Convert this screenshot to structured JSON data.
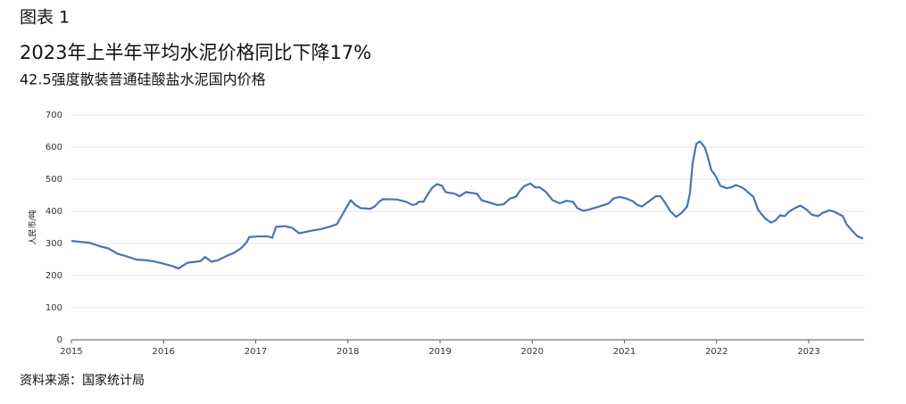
{
  "chart_data": {
    "type": "line",
    "label": "图表 1",
    "title": "2023年上半年平均水泥价格同比下降17%",
    "subtitle": "42.5强度散装普通硅酸盐水泥国内价格",
    "source": "资料来源：国家统计局",
    "y_label": "人民币/吨",
    "grid": true,
    "xlim": [
      2015,
      2023.6
    ],
    "xticks": [
      2015,
      2016,
      2017,
      2018,
      2019,
      2020,
      2021,
      2022,
      2023
    ],
    "ylim": [
      0,
      700
    ],
    "yticks": [
      0,
      100,
      200,
      300,
      400,
      500,
      600,
      700
    ],
    "x": [
      2015.0,
      2015.1,
      2015.2,
      2015.3,
      2015.4,
      2015.5,
      2015.6,
      2015.7,
      2015.8,
      2015.9,
      2016.0,
      2016.1,
      2016.16,
      2016.26,
      2016.4,
      2016.45,
      2016.52,
      2016.59,
      2016.69,
      2016.76,
      2016.84,
      2016.9,
      2016.93,
      2017.03,
      2017.13,
      2017.18,
      2017.22,
      2017.32,
      2017.4,
      2017.47,
      2017.51,
      2017.61,
      2017.71,
      2017.8,
      2017.88,
      2017.95,
      2018.0,
      2018.03,
      2018.08,
      2018.14,
      2018.24,
      2018.29,
      2018.34,
      2018.38,
      2018.53,
      2018.63,
      2018.7,
      2018.74,
      2018.77,
      2018.82,
      2018.87,
      2018.92,
      2018.97,
      2019.02,
      2019.06,
      2019.16,
      2019.21,
      2019.28,
      2019.4,
      2019.45,
      2019.53,
      2019.62,
      2019.69,
      2019.76,
      2019.82,
      2019.87,
      2019.91,
      2019.98,
      2020.03,
      2020.08,
      2020.15,
      2020.22,
      2020.3,
      2020.37,
      2020.44,
      2020.49,
      2020.55,
      2020.61,
      2020.69,
      2020.78,
      2020.83,
      2020.88,
      2020.95,
      2021.02,
      2021.09,
      2021.14,
      2021.19,
      2021.26,
      2021.34,
      2021.39,
      2021.43,
      2021.5,
      2021.56,
      2021.62,
      2021.68,
      2021.71,
      2021.74,
      2021.78,
      2021.82,
      2021.87,
      2021.9,
      2021.94,
      2021.99,
      2022.04,
      2022.11,
      2022.16,
      2022.21,
      2022.27,
      2022.3,
      2022.4,
      2022.45,
      2022.52,
      2022.59,
      2022.64,
      2022.69,
      2022.74,
      2022.79,
      2022.85,
      2022.91,
      2022.98,
      2023.03,
      2023.1,
      2023.15,
      2023.22,
      2023.27,
      2023.37,
      2023.41,
      2023.47,
      2023.53,
      2023.59
    ],
    "series": [
      {
        "color": "#4a72b6",
        "values": [
          308,
          305,
          302,
          292,
          285,
          268,
          260,
          250,
          248,
          244,
          237,
          229,
          222,
          240,
          245,
          258,
          243,
          248,
          262,
          270,
          285,
          303,
          320,
          322,
          322,
          318,
          352,
          354,
          348,
          332,
          334,
          340,
          345,
          352,
          360,
          395,
          420,
          435,
          420,
          410,
          408,
          415,
          430,
          438,
          437,
          430,
          420,
          422,
          430,
          430,
          455,
          475,
          485,
          480,
          460,
          455,
          447,
          460,
          455,
          435,
          428,
          420,
          422,
          440,
          445,
          465,
          478,
          487,
          475,
          475,
          460,
          435,
          425,
          433,
          430,
          410,
          402,
          405,
          412,
          420,
          425,
          440,
          445,
          440,
          432,
          420,
          415,
          430,
          447,
          447,
          432,
          400,
          383,
          395,
          415,
          455,
          550,
          610,
          618,
          600,
          575,
          530,
          510,
          480,
          472,
          475,
          482,
          475,
          470,
          445,
          405,
          380,
          365,
          372,
          388,
          385,
          400,
          410,
          418,
          405,
          390,
          385,
          395,
          403,
          400,
          385,
          360,
          340,
          322,
          315
        ]
      }
    ]
  }
}
